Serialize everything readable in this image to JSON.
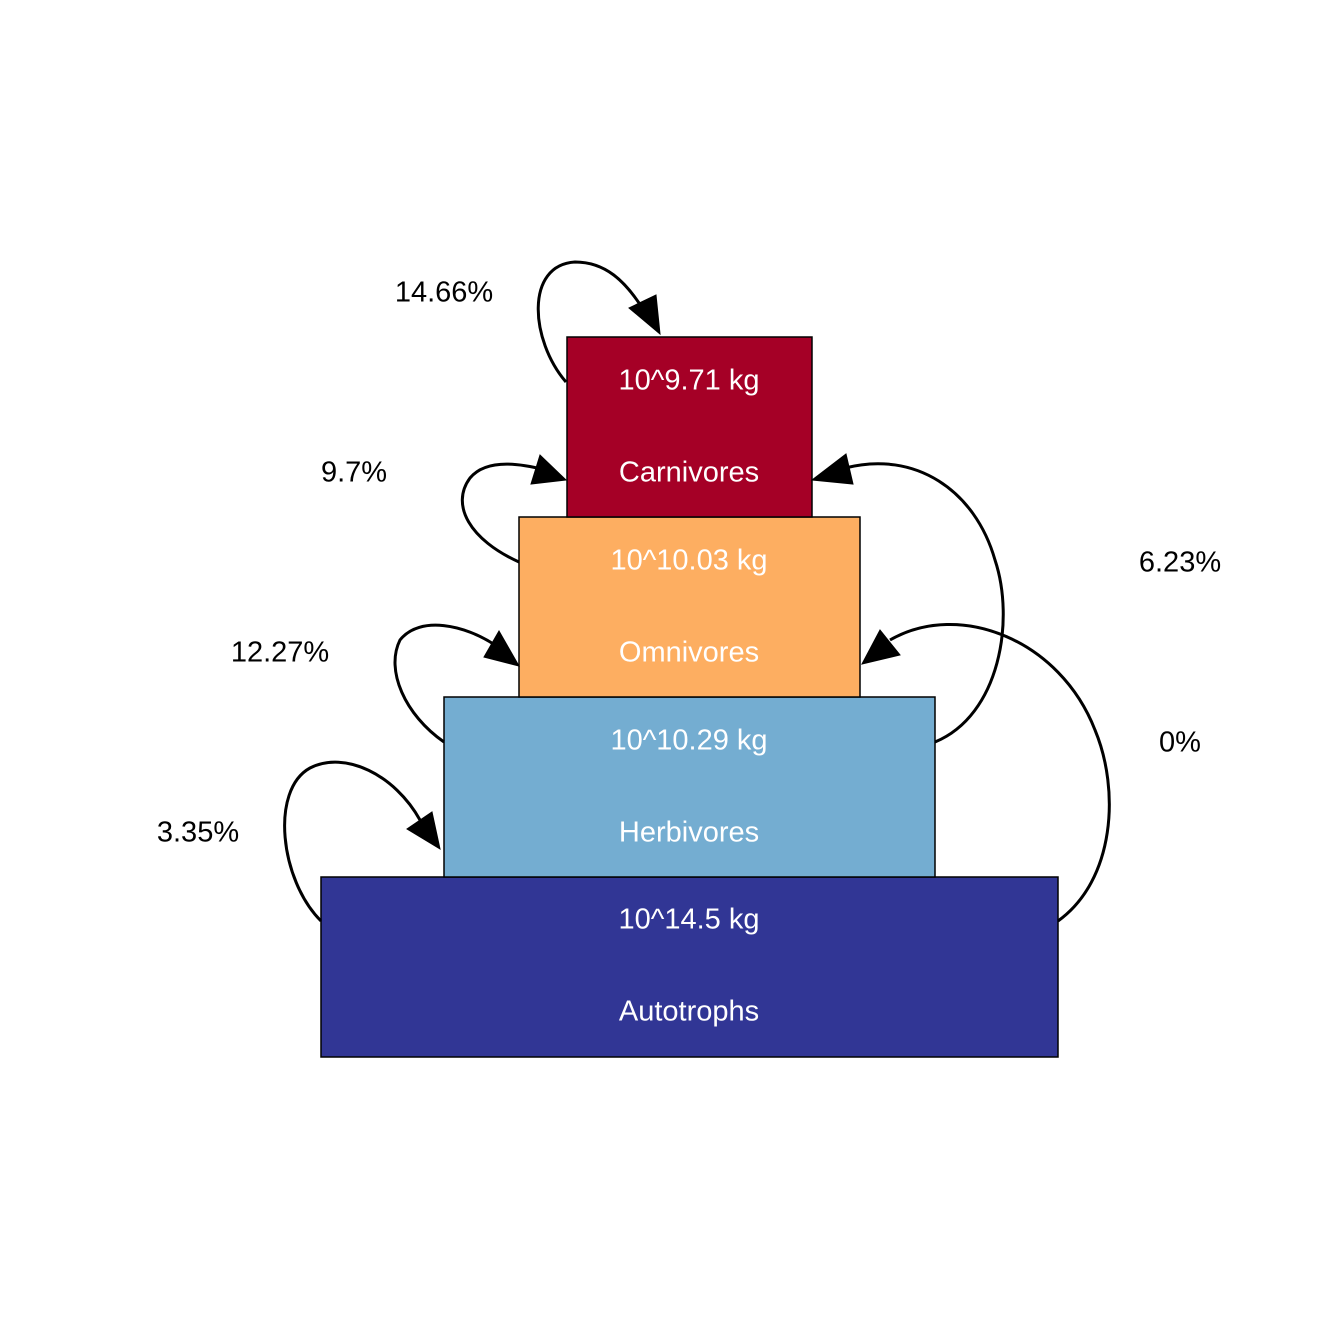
{
  "levels": [
    {
      "name": "Carnivores",
      "mass": "10^9.71 kg",
      "color": "#A50026"
    },
    {
      "name": "Omnivores",
      "mass": "10^10.03 kg",
      "color": "#FDAE61"
    },
    {
      "name": "Herbivores",
      "mass": "10^10.29 kg",
      "color": "#74ADD1"
    },
    {
      "name": "Autotrophs",
      "mass": "10^14.5 kg",
      "color": "#313695"
    }
  ],
  "transfers": [
    {
      "from": "Carnivores",
      "to": "Carnivores",
      "label": "14.66%"
    },
    {
      "from": "Omnivores",
      "to": "Carnivores",
      "label": "9.7%"
    },
    {
      "from": "Herbivores",
      "to": "Omnivores",
      "label": "12.27%"
    },
    {
      "from": "Autotrophs",
      "to": "Herbivores",
      "label": "3.35%"
    },
    {
      "from": "Herbivores",
      "to": "Carnivores",
      "label": "6.23%"
    },
    {
      "from": "Autotrophs",
      "to": "Omnivores",
      "label": "0%"
    }
  ]
}
